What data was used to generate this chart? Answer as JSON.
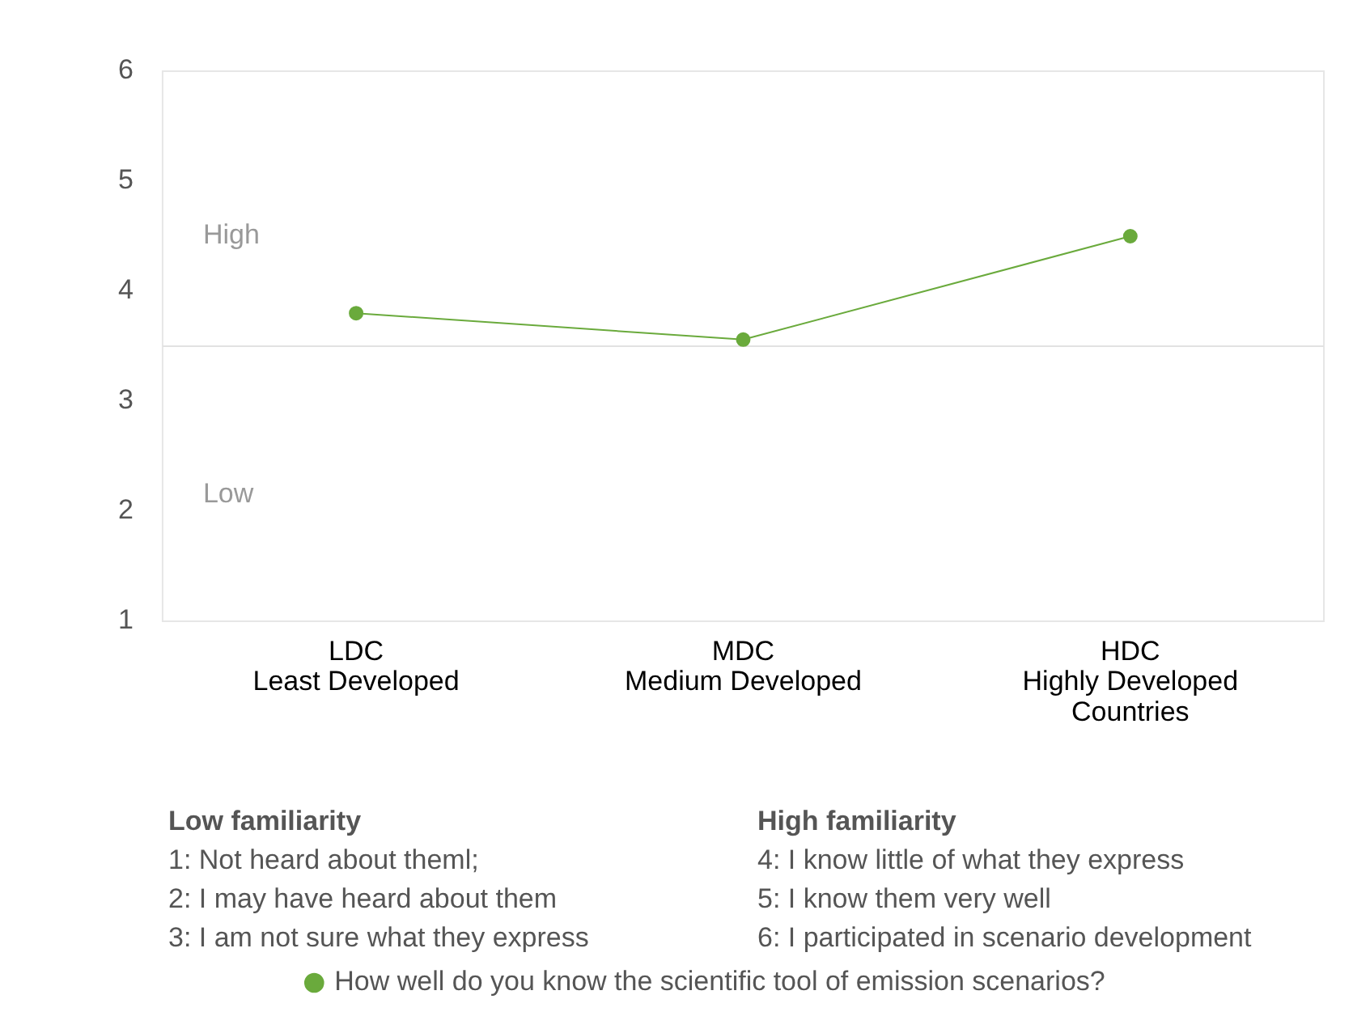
{
  "chart_data": {
    "type": "line",
    "categories": [
      "LDC\nLeast Developed",
      "MDC\nMedium Developed",
      "HDC\nHighly Developed\nCountries"
    ],
    "series": [
      {
        "name": "How well do you know the scientific tool of emission scenarios?",
        "color": "#6aaa3c",
        "values": [
          3.8,
          3.56,
          4.5
        ]
      }
    ],
    "ylim": [
      1,
      6
    ],
    "yticks": [
      1,
      2,
      3,
      4,
      5,
      6
    ],
    "ref_lines": [
      {
        "axis": "y",
        "value": 3.5,
        "color": "#e2e2e2"
      }
    ],
    "annotations": [
      "High",
      "Low",
      "Low familiarity",
      "1: Not heard about theml;",
      "2: I may have heard about them",
      "3: I am not sure what they express",
      "High familiarity",
      "4: I know little of what they express",
      "5: I know them very well",
      "6: I participated in scenario development"
    ],
    "grid": false,
    "legend": "bottom",
    "marker": "circle",
    "line_style": "solid"
  }
}
